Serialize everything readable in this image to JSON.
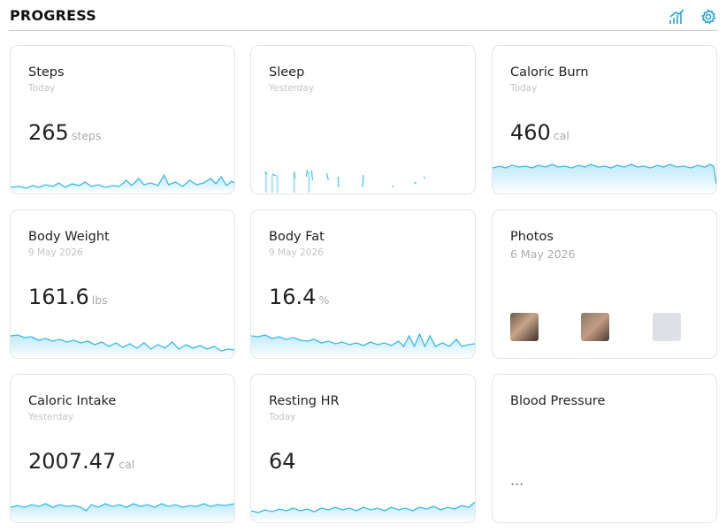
{
  "header": {
    "title": "PROGRESS"
  },
  "cards": [
    {
      "title": "Steps",
      "date": "Today",
      "value": "265",
      "unit": "steps"
    },
    {
      "title": "Sleep",
      "date": "Yesterday"
    },
    {
      "title": "Caloric Burn",
      "date": "Today",
      "value": "460",
      "unit": "cal"
    },
    {
      "title": "Body Weight",
      "date": "9 May 2026",
      "value": "161.6",
      "unit": "lbs"
    },
    {
      "title": "Body Fat",
      "date": "9 May 2026",
      "value": "16.4",
      "unit": "%"
    },
    {
      "title": "Photos",
      "date": "6 May 2026"
    },
    {
      "title": "Caloric Intake",
      "date": "Yesterday",
      "value": "2007.47",
      "unit": "cal"
    },
    {
      "title": "Resting HR",
      "date": "Today",
      "value": "64"
    },
    {
      "title": "Blood Pressure",
      "value": "..."
    }
  ]
}
